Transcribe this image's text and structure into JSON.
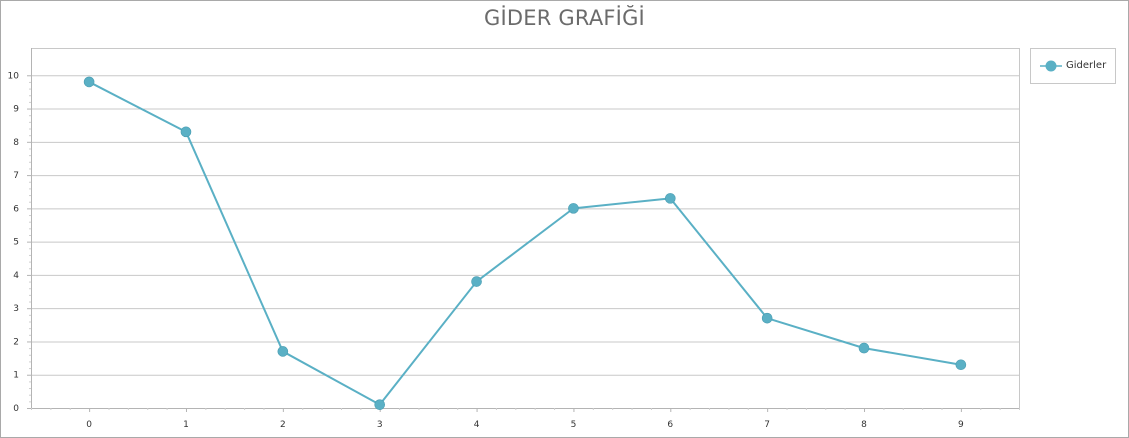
{
  "chart_data": {
    "type": "line",
    "title": "GİDER GRAFİĞİ",
    "xlabel": "",
    "ylabel": "",
    "x": [
      0,
      1,
      2,
      3,
      4,
      5,
      6,
      7,
      8,
      9
    ],
    "series": [
      {
        "name": "Giderler",
        "values": [
          9.8,
          8.3,
          1.7,
          0.1,
          3.8,
          6.0,
          6.3,
          2.7,
          1.8,
          1.3
        ],
        "color": "#5ab0c5"
      }
    ],
    "xlim": [
      -0.6,
      9.6
    ],
    "ylim": [
      0,
      11
    ],
    "yticks": [
      0,
      1,
      2,
      3,
      4,
      5,
      6,
      7,
      8,
      9,
      10
    ],
    "xticks": [
      0,
      1,
      2,
      3,
      4,
      5,
      6,
      7,
      8,
      9
    ],
    "grid": true,
    "legend_position": "top-right"
  },
  "colors": {
    "line": "#5ab0c5",
    "marker": "#5ab0c5",
    "grid": "#c8c8c8",
    "title": "#6b6b6b"
  }
}
